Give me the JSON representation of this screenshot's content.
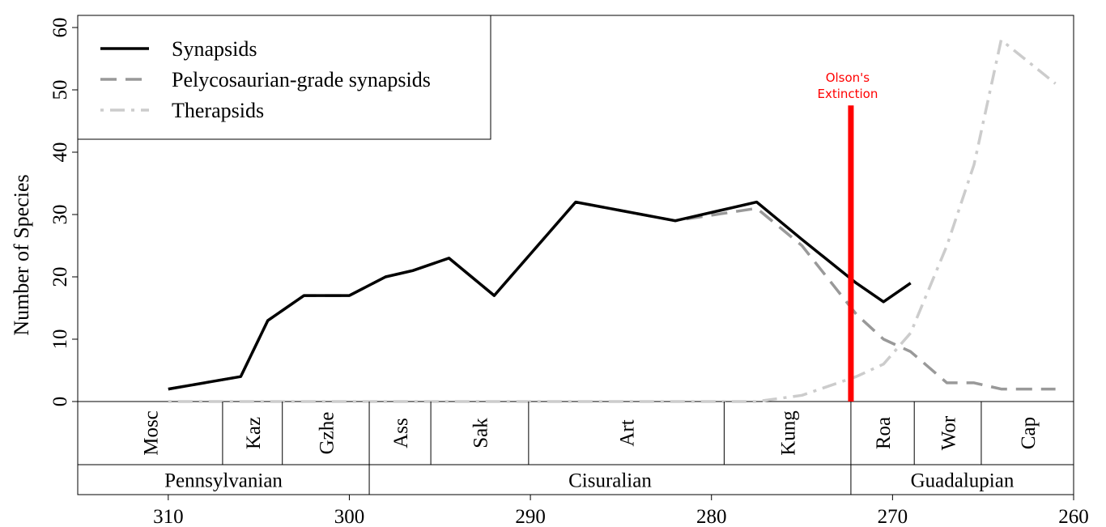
{
  "chart_data": {
    "type": "line",
    "ylabel": "Number of Species",
    "xlim": [
      315,
      260
    ],
    "ylim": [
      0,
      60
    ],
    "x_reversed": true,
    "x_ticks": [
      310,
      300,
      290,
      280,
      270,
      260
    ],
    "y_ticks": [
      0,
      10,
      20,
      30,
      40,
      50,
      60
    ],
    "grid": false,
    "legend": "top-left",
    "series": [
      {
        "name": "Synapsids",
        "style": "solid",
        "color": "#000000",
        "x": [
          310,
          306,
          304.5,
          302.5,
          300,
          298,
          296.5,
          294.5,
          292,
          287.5,
          282,
          277.5,
          275,
          272,
          270.5,
          269
        ],
        "values": [
          2,
          4,
          13,
          17,
          17,
          20,
          21,
          23,
          17,
          32,
          29,
          32,
          26,
          19,
          16,
          19
        ]
      },
      {
        "name": "Pelycosaurian-grade synapsids",
        "style": "dashed",
        "color": "#999999",
        "x": [
          310,
          306,
          304.5,
          302.5,
          300,
          298,
          296.5,
          294.5,
          292,
          287.5,
          282,
          277.5,
          275,
          272,
          270.5,
          269,
          267,
          265.5,
          264,
          261
        ],
        "values": [
          2,
          4,
          13,
          17,
          17,
          20,
          21,
          23,
          17,
          32,
          29,
          31,
          25,
          14,
          10,
          8,
          3,
          3,
          2,
          2
        ]
      },
      {
        "name": "Therapsids",
        "style": "dotdash",
        "color": "#cccccc",
        "x": [
          310,
          300,
          290,
          280,
          277.5,
          275,
          272,
          270.5,
          269,
          267,
          265.5,
          264,
          261
        ],
        "values": [
          0,
          0,
          0,
          0,
          0,
          1,
          4,
          6,
          11,
          25,
          38,
          58,
          51
        ]
      }
    ],
    "stages": [
      {
        "label": "Mosc",
        "from": 315,
        "to": 307
      },
      {
        "label": "Kaz",
        "from": 307,
        "to": 303.7
      },
      {
        "label": "Gzhe",
        "from": 303.7,
        "to": 298.9
      },
      {
        "label": "Ass",
        "from": 298.9,
        "to": 295.5
      },
      {
        "label": "Sak",
        "from": 295.5,
        "to": 290.1
      },
      {
        "label": "Art",
        "from": 290.1,
        "to": 279.3
      },
      {
        "label": "Kung",
        "from": 279.3,
        "to": 272.3
      },
      {
        "label": "Roa",
        "from": 272.3,
        "to": 268.8
      },
      {
        "label": "Wor",
        "from": 268.8,
        "to": 265.1
      },
      {
        "label": "Cap",
        "from": 265.1,
        "to": 260
      }
    ],
    "epochs": [
      {
        "label": "Pennsylvanian",
        "from": 315,
        "to": 298.9
      },
      {
        "label": "Cisuralian",
        "from": 298.9,
        "to": 272.3
      },
      {
        "label": "Guadalupian",
        "from": 272.3,
        "to": 260
      }
    ],
    "annotation": {
      "lines": [
        "Olson's",
        "Extinction"
      ],
      "x": 272.3,
      "y_top": 47.5,
      "color": "#ff0000"
    }
  }
}
